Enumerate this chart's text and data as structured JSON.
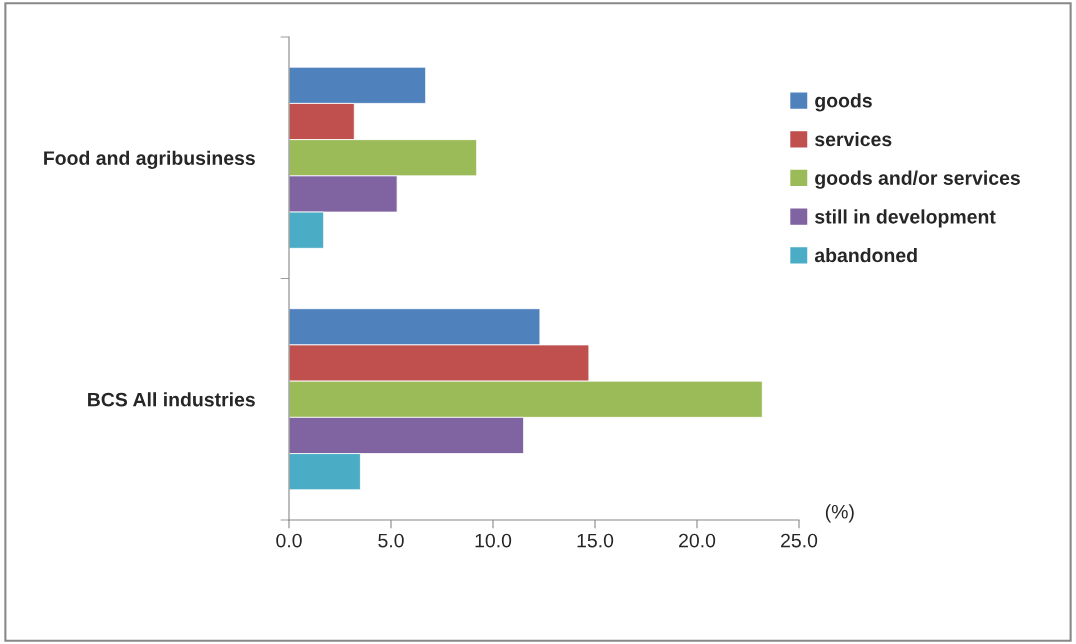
{
  "chart_data": {
    "type": "bar",
    "orientation": "horizontal",
    "categories": [
      "Food and agribusiness",
      "BCS All industries"
    ],
    "series": [
      {
        "name": "goods",
        "color": "#4f81bd",
        "values": [
          6.7,
          12.3
        ]
      },
      {
        "name": "services",
        "color": "#c0504d",
        "values": [
          3.2,
          14.7
        ]
      },
      {
        "name": "goods and/or services",
        "color": "#9bbb59",
        "values": [
          9.2,
          23.2
        ]
      },
      {
        "name": "still in development",
        "color": "#8064a2",
        "values": [
          5.3,
          11.5
        ]
      },
      {
        "name": "abandoned",
        "color": "#4bacc6",
        "values": [
          1.7,
          3.5
        ]
      }
    ],
    "xlabel": "(%)",
    "xlim": [
      0,
      25
    ],
    "xticks": [
      {
        "value": 0,
        "label": "0.0"
      },
      {
        "value": 5,
        "label": "5.0"
      },
      {
        "value": 10,
        "label": "10.0"
      },
      {
        "value": 15,
        "label": "15.0"
      },
      {
        "value": 20,
        "label": "20.0"
      },
      {
        "value": 25,
        "label": "25.0"
      }
    ],
    "grid": false,
    "legend": "right"
  }
}
